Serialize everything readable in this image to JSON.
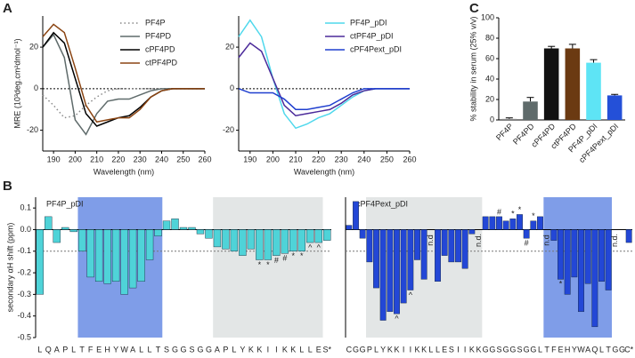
{
  "panel_labels": [
    "A",
    "B",
    "C"
  ],
  "chart_data": [
    {
      "type": "line",
      "x_label": "Wavelength (nm)",
      "y_label": "MRE (10³deg.cm²dmol⁻¹)",
      "x": [
        185,
        190,
        195,
        200,
        205,
        210,
        215,
        220,
        225,
        230,
        235,
        240,
        245,
        250,
        255,
        260
      ],
      "xlim": [
        185,
        260
      ],
      "xticks": [
        190,
        200,
        210,
        220,
        230,
        240,
        250,
        260
      ],
      "ylim": [
        -30,
        35
      ],
      "yticks": [
        -20,
        0,
        20
      ],
      "zero_line": true,
      "legend": "top-right",
      "series": [
        {
          "name": "PF4P",
          "color": "#888888",
          "dash": "1.5,3",
          "values": [
            -3,
            -8,
            -14,
            -13,
            -8,
            -4,
            -1,
            0,
            0,
            0,
            0,
            0,
            0,
            0,
            0,
            0
          ]
        },
        {
          "name": "PF4PD",
          "color": "#5f6b6b",
          "values": [
            20,
            26,
            15,
            -15,
            -22,
            -12,
            -6,
            -5,
            -5,
            -3,
            -1,
            0,
            0,
            0,
            0,
            0
          ]
        },
        {
          "name": "cPF4PD",
          "color": "#000000",
          "values": [
            20,
            27,
            22,
            5,
            -12,
            -18,
            -16,
            -14,
            -13,
            -9,
            -4,
            -1,
            0,
            0,
            0,
            0
          ]
        },
        {
          "name": "ctPF4PD",
          "color": "#8b4513",
          "values": [
            25,
            31,
            27,
            10,
            -8,
            -16,
            -15,
            -14,
            -14,
            -10,
            -4,
            -1,
            0,
            0,
            0,
            0
          ]
        }
      ]
    },
    {
      "type": "line",
      "x_label": "Wavelength (nm)",
      "x": [
        185,
        190,
        195,
        200,
        205,
        210,
        215,
        220,
        225,
        230,
        235,
        240,
        245,
        250,
        255,
        260
      ],
      "xlim": [
        185,
        260
      ],
      "xticks": [
        190,
        200,
        210,
        220,
        230,
        240,
        250,
        260
      ],
      "ylim": [
        -30,
        35
      ],
      "yticks": [
        -20,
        0,
        20
      ],
      "zero_line": true,
      "legend": "top-right",
      "series": [
        {
          "name": "PF4P_pDI",
          "color": "#4fd8ec",
          "values": [
            25,
            33,
            25,
            5,
            -12,
            -19,
            -17,
            -14,
            -12,
            -8,
            -4,
            -1,
            0,
            0,
            0,
            0
          ]
        },
        {
          "name": "ctPF4P_pDI",
          "color": "#4b2a9a",
          "values": [
            15,
            22,
            18,
            5,
            -8,
            -13,
            -12,
            -11,
            -10,
            -7,
            -3,
            -1,
            0,
            0,
            0,
            0
          ]
        },
        {
          "name": "cPF4Pext_pDI",
          "color": "#1f3fcf",
          "values": [
            0,
            -2,
            -2,
            -2,
            -5,
            -10,
            -10,
            -9,
            -8,
            -5,
            -2,
            0,
            0,
            0,
            0,
            0
          ]
        }
      ]
    },
    {
      "type": "bar",
      "y_label": "% stability in serum (25% v/v)",
      "categories": [
        "PF4P",
        "PF4PD",
        "cPF4PD",
        "ctPF4PD",
        "PF4P_pDI",
        "cPF4Pext_pDI"
      ],
      "values": [
        1,
        18,
        70,
        70,
        56,
        24
      ],
      "errors": [
        1,
        4,
        2,
        4,
        3,
        1
      ],
      "colors": [
        "#888888",
        "#5f6b6b",
        "#111111",
        "#6b3a12",
        "#5ee4f5",
        "#2450d8"
      ],
      "ylim": [
        0,
        100
      ],
      "yticks": [
        0,
        20,
        40,
        60,
        80,
        100
      ]
    },
    {
      "type": "residue",
      "title": "PF4P_pDI",
      "y_label": "secondary αH shift (ppm)",
      "color": "#4fd3d8",
      "categories": [
        "L",
        "Q",
        "A",
        "P",
        "L",
        "T",
        "F",
        "E",
        "H",
        "Y",
        "W",
        "A",
        "L",
        "L",
        "T",
        "S",
        "G",
        "G",
        "S",
        "G",
        "G",
        "A",
        "P",
        "L",
        "Y",
        "K",
        "K",
        "I",
        "I",
        "K",
        "K",
        "L",
        "L",
        "E",
        "S*"
      ],
      "values": [
        -0.3,
        0.06,
        -0.06,
        0.01,
        -0.01,
        -0.1,
        -0.22,
        -0.24,
        -0.25,
        -0.24,
        -0.3,
        -0.27,
        -0.24,
        -0.14,
        -0.03,
        0.04,
        0.05,
        0.01,
        0.01,
        -0.02,
        -0.04,
        -0.08,
        -0.09,
        -0.1,
        -0.12,
        -0.09,
        -0.14,
        -0.14,
        -0.12,
        -0.11,
        -0.1,
        -0.1,
        -0.06,
        -0.06,
        -0.05
      ],
      "annotations": [
        null,
        null,
        null,
        null,
        null,
        null,
        null,
        null,
        null,
        null,
        null,
        null,
        null,
        null,
        null,
        null,
        null,
        null,
        null,
        null,
        null,
        null,
        null,
        null,
        null,
        null,
        "*",
        "*",
        "#",
        "#",
        "*",
        "*",
        "^",
        "^",
        null
      ],
      "regions": [
        {
          "from": 5,
          "to": 14,
          "color": "#7f9de8"
        },
        {
          "from": 21,
          "to": 33,
          "color": "#e3e6e6"
        }
      ],
      "threshold": -0.1,
      "ylim": [
        -0.5,
        0.15
      ],
      "yticks": [
        0.1,
        {
          "value": 0,
          "label": "0.0"
        },
        -0.1,
        -0.2,
        -0.3,
        -0.4,
        -0.5
      ]
    },
    {
      "type": "residue",
      "title": "cPF4Pext_pDI",
      "color": "#2347d6",
      "categories": [
        "C",
        "G",
        "G",
        "P",
        "L",
        "Y",
        "K",
        "K",
        "I",
        "I",
        "K",
        "K",
        "L",
        "L",
        "E",
        "S",
        "I",
        "I",
        "K",
        "K",
        "G",
        "G",
        "S",
        "G",
        "G",
        "S",
        "G",
        "G",
        "L",
        "T",
        "F",
        "E",
        "H",
        "Y",
        "W",
        "A",
        "Q",
        "L",
        "T",
        "G",
        "G",
        "C*"
      ],
      "values": [
        0.02,
        0.13,
        -0.04,
        -0.15,
        -0.27,
        -0.42,
        -0.38,
        -0.39,
        -0.34,
        -0.28,
        -0.14,
        -0.23,
        null,
        -0.24,
        -0.12,
        -0.15,
        -0.15,
        -0.18,
        -0.02,
        null,
        0.06,
        0.06,
        0.06,
        0.04,
        0.05,
        0.07,
        -0.04,
        0.04,
        0.06,
        null,
        -0.05,
        -0.23,
        -0.3,
        -0.22,
        -0.38,
        -0.25,
        -0.45,
        -0.24,
        -0.28,
        null,
        0,
        -0.06
      ],
      "annotations": [
        null,
        null,
        null,
        null,
        null,
        null,
        null,
        "^",
        null,
        "^",
        null,
        null,
        "n.d",
        null,
        null,
        null,
        null,
        null,
        null,
        "n.d.",
        null,
        null,
        "#",
        null,
        "*",
        "*",
        "#",
        "*",
        null,
        "n.d",
        null,
        "*",
        null,
        null,
        null,
        null,
        null,
        null,
        null,
        "n.d.",
        null,
        null
      ],
      "regions": [
        {
          "from": 3,
          "to": 19,
          "color": "#e3e6e6"
        },
        {
          "from": 29,
          "to": 38,
          "color": "#7f9de8"
        }
      ],
      "threshold": -0.1,
      "ylim": [
        -0.5,
        0.15
      ]
    }
  ]
}
